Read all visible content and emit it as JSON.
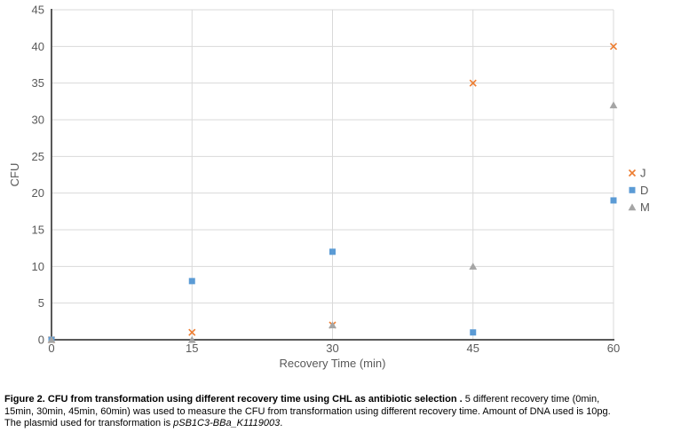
{
  "chart_data": {
    "type": "scatter",
    "x": [
      0,
      15,
      30,
      45,
      60
    ],
    "series": [
      {
        "name": "J",
        "marker": "x",
        "color": "#ED7D31",
        "values": [
          0,
          1,
          2,
          35,
          40
        ]
      },
      {
        "name": "D",
        "marker": "square",
        "color": "#5B9BD5",
        "values": [
          0,
          8,
          12,
          1,
          19
        ]
      },
      {
        "name": "M",
        "marker": "triangle",
        "color": "#A5A5A5",
        "values": [
          0,
          0,
          2,
          10,
          32
        ]
      }
    ],
    "title": "",
    "xlabel": "Recovery Time (min)",
    "ylabel": "CFU",
    "xlim": [
      0,
      60
    ],
    "ylim": [
      0,
      45
    ],
    "xticks": [
      0,
      15,
      30,
      45,
      60
    ],
    "yticks": [
      0,
      5,
      10,
      15,
      20,
      25,
      30,
      35,
      40,
      45
    ],
    "grid": true,
    "legend_position": "right",
    "legend_labels": [
      "J",
      "D",
      "M"
    ],
    "colors": {
      "axis_line": "#595959",
      "gridline": "#D9D9D9",
      "tick_label": "#595959",
      "axis_title": "#595959",
      "legend_text": "#595959"
    }
  },
  "caption": {
    "line1_bold": "Figure 2. CFU from transformation using different recovery time using CHL as antibiotic selection .",
    "line1_normal": " 5 different recovery time (0min,",
    "line2": "15min, 30min, 45min, 60min) was used to measure the CFU from transformation using different recovery time. Amount of DNA used is 10pg.",
    "line3_start": "The plasmid used for transformation is ",
    "line3_italic": "pSB1C3-BBa_K1119003",
    "line3_end": "."
  }
}
